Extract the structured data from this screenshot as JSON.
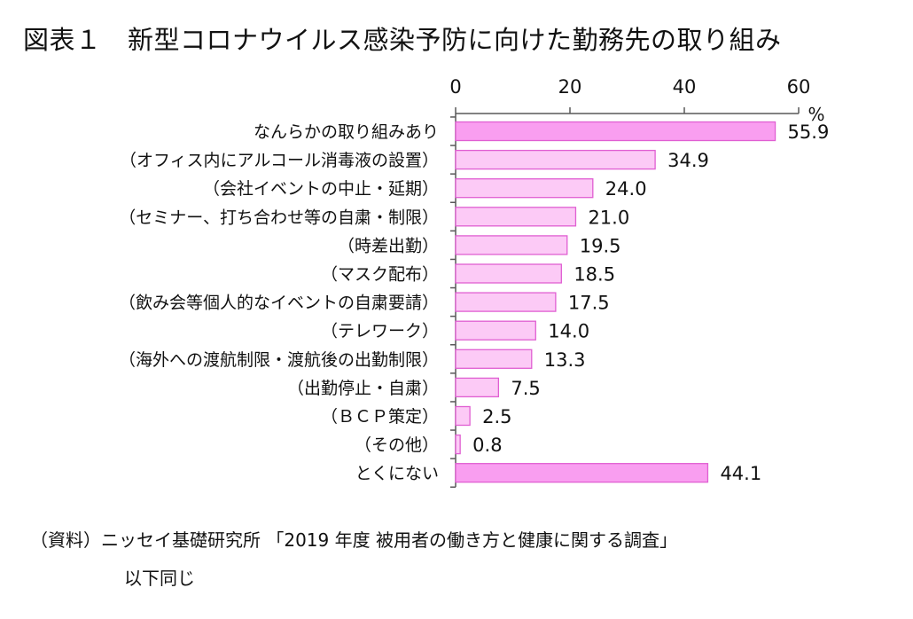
{
  "title": "図表１　新型コロナウイルス感染予防に向けた勤務先の取り組み",
  "source": {
    "line1": "（資料）ニッセイ基礎研究所 「2019 年度 被用者の働き方と健康に関する調査」",
    "line2": "以下同じ"
  },
  "chart_data": {
    "type": "bar",
    "orientation": "horizontal",
    "unit": "%",
    "xlim": [
      0,
      60
    ],
    "xticks": [
      0,
      20,
      40,
      60
    ],
    "grid": false,
    "categories": [
      "なんらかの取り組みあり",
      "（オフィス内にアルコール消毒液の設置）",
      "（会社イベントの中止・延期）",
      "（セミナー、打ち合わせ等の自粛・制限）",
      "（時差出勤）",
      "（マスク配布）",
      "（飲み会等個人的なイベントの自粛要請）",
      "（テレワーク）",
      "（海外への渡航制限・渡航後の出勤制限）",
      "（出勤停止・自粛）",
      "（ＢＣＰ策定）",
      "（その他）",
      "とくにない"
    ],
    "values": [
      55.9,
      34.9,
      24.0,
      21.0,
      19.5,
      18.5,
      17.5,
      14.0,
      13.3,
      7.5,
      2.5,
      0.8,
      44.1
    ],
    "value_labels": [
      "55.9",
      "34.9",
      "24.0",
      "21.0",
      "19.5",
      "18.5",
      "17.5",
      "14.0",
      "13.3",
      "7.5",
      "2.5",
      "0.8",
      "44.1"
    ],
    "colors": {
      "strong_fill": "#f99ef0",
      "light_fill": "#fccaf6",
      "border": "#e05fd2",
      "axis": "#595959"
    },
    "strong_indices": [
      0,
      12
    ]
  }
}
